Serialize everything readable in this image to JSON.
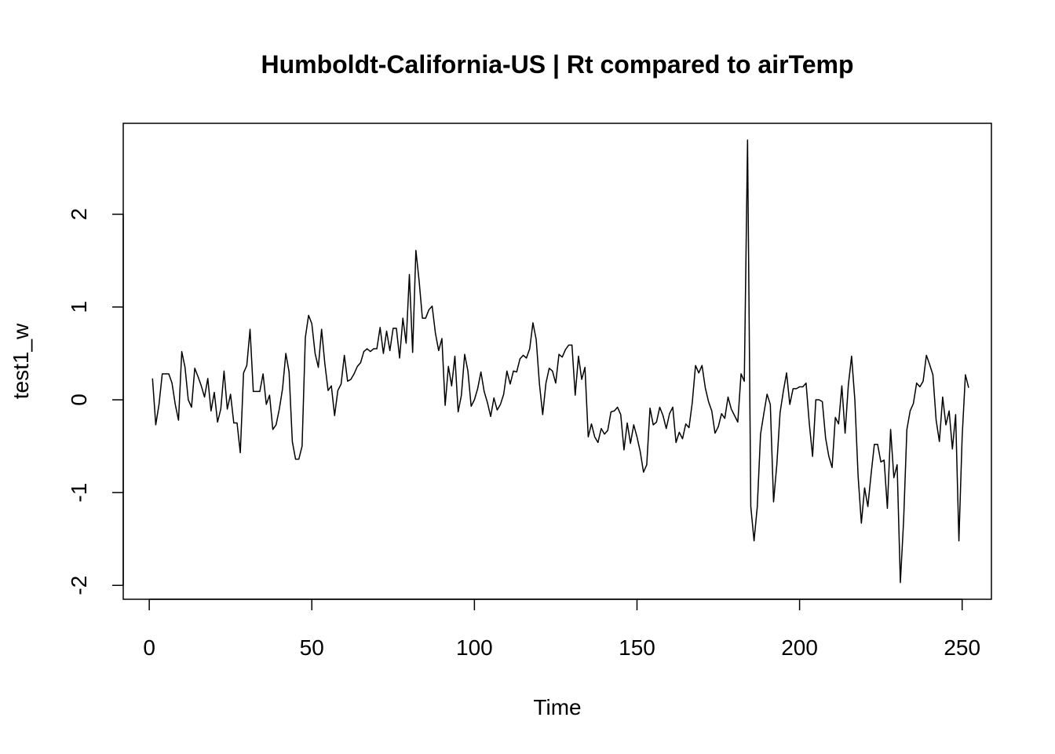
{
  "chart_data": {
    "type": "line",
    "title": "Humboldt-California-US | Rt compared to airTemp",
    "xlabel": "Time",
    "ylabel": "test1_w",
    "xlim": [
      -8,
      259
    ],
    "ylim": [
      -2.15,
      2.98
    ],
    "x_ticks": [
      0,
      50,
      100,
      150,
      200,
      250
    ],
    "y_ticks": [
      -2,
      -1,
      0,
      1,
      2
    ],
    "x_tick_labels": [
      "0",
      "50",
      "100",
      "150",
      "200",
      "250"
    ],
    "y_tick_labels": [
      "-2",
      "-1",
      "0",
      "1",
      "2"
    ],
    "grid": false,
    "line_color": "#000000",
    "series": [
      {
        "x_start": 1,
        "x_step": 1,
        "values": [
          0.23,
          -0.27,
          -0.05,
          0.28,
          0.28,
          0.28,
          0.18,
          -0.05,
          -0.22,
          0.52,
          0.35,
          0.0,
          -0.08,
          0.34,
          0.25,
          0.15,
          0.03,
          0.23,
          -0.12,
          0.08,
          -0.24,
          -0.1,
          0.31,
          -0.1,
          0.06,
          -0.25,
          -0.25,
          -0.57,
          0.29,
          0.37,
          0.76,
          0.09,
          0.09,
          0.09,
          0.28,
          -0.05,
          0.05,
          -0.32,
          -0.27,
          -0.1,
          0.12,
          0.5,
          0.3,
          -0.45,
          -0.64,
          -0.64,
          -0.5,
          0.67,
          0.91,
          0.82,
          0.5,
          0.35,
          0.76,
          0.39,
          0.1,
          0.15,
          -0.17,
          0.1,
          0.17,
          0.48,
          0.2,
          0.22,
          0.28,
          0.36,
          0.4,
          0.52,
          0.55,
          0.52,
          0.55,
          0.55,
          0.78,
          0.5,
          0.74,
          0.53,
          0.77,
          0.77,
          0.45,
          0.88,
          0.61,
          1.35,
          0.51,
          1.61,
          1.28,
          0.88,
          0.88,
          0.97,
          1.01,
          0.72,
          0.53,
          0.66,
          -0.06,
          0.36,
          0.15,
          0.47,
          -0.13,
          0.05,
          0.49,
          0.31,
          -0.07,
          0.0,
          0.12,
          0.3,
          0.09,
          -0.03,
          -0.18,
          0.02,
          -0.11,
          -0.05,
          0.06,
          0.31,
          0.17,
          0.31,
          0.3,
          0.44,
          0.48,
          0.45,
          0.55,
          0.83,
          0.65,
          0.17,
          -0.16,
          0.18,
          0.34,
          0.31,
          0.18,
          0.49,
          0.46,
          0.54,
          0.59,
          0.59,
          0.05,
          0.47,
          0.22,
          0.35,
          -0.4,
          -0.26,
          -0.4,
          -0.46,
          -0.31,
          -0.37,
          -0.33,
          -0.13,
          -0.12,
          -0.08,
          -0.16,
          -0.54,
          -0.25,
          -0.47,
          -0.27,
          -0.4,
          -0.56,
          -0.78,
          -0.7,
          -0.09,
          -0.27,
          -0.24,
          -0.08,
          -0.17,
          -0.31,
          -0.15,
          -0.08,
          -0.46,
          -0.35,
          -0.42,
          -0.26,
          -0.3,
          -0.03,
          0.37,
          0.29,
          0.37,
          0.13,
          -0.02,
          -0.12,
          -0.36,
          -0.29,
          -0.15,
          -0.2,
          0.03,
          -0.1,
          -0.17,
          -0.24,
          0.28,
          0.2,
          2.8,
          -1.15,
          -1.52,
          -1.15,
          -0.37,
          -0.15,
          0.06,
          -0.05,
          -1.1,
          -0.7,
          -0.14,
          0.09,
          0.29,
          -0.05,
          0.12,
          0.12,
          0.14,
          0.14,
          0.18,
          -0.26,
          -0.61,
          -0.0,
          -0.0,
          -0.02,
          -0.41,
          -0.61,
          -0.73,
          -0.19,
          -0.26,
          0.15,
          -0.36,
          0.16,
          0.47,
          -0.0,
          -0.82,
          -1.33,
          -0.95,
          -1.15,
          -0.8,
          -0.48,
          -0.48,
          -0.67,
          -0.65,
          -1.17,
          -0.32,
          -0.84,
          -0.7,
          -1.97,
          -1.3,
          -0.32,
          -0.12,
          -0.04,
          0.18,
          0.14,
          0.2,
          0.48,
          0.38,
          0.27,
          -0.22,
          -0.45,
          0.03,
          -0.27,
          -0.12,
          -0.53,
          -0.16,
          -1.52,
          -0.4,
          0.27,
          0.13
        ]
      }
    ]
  }
}
